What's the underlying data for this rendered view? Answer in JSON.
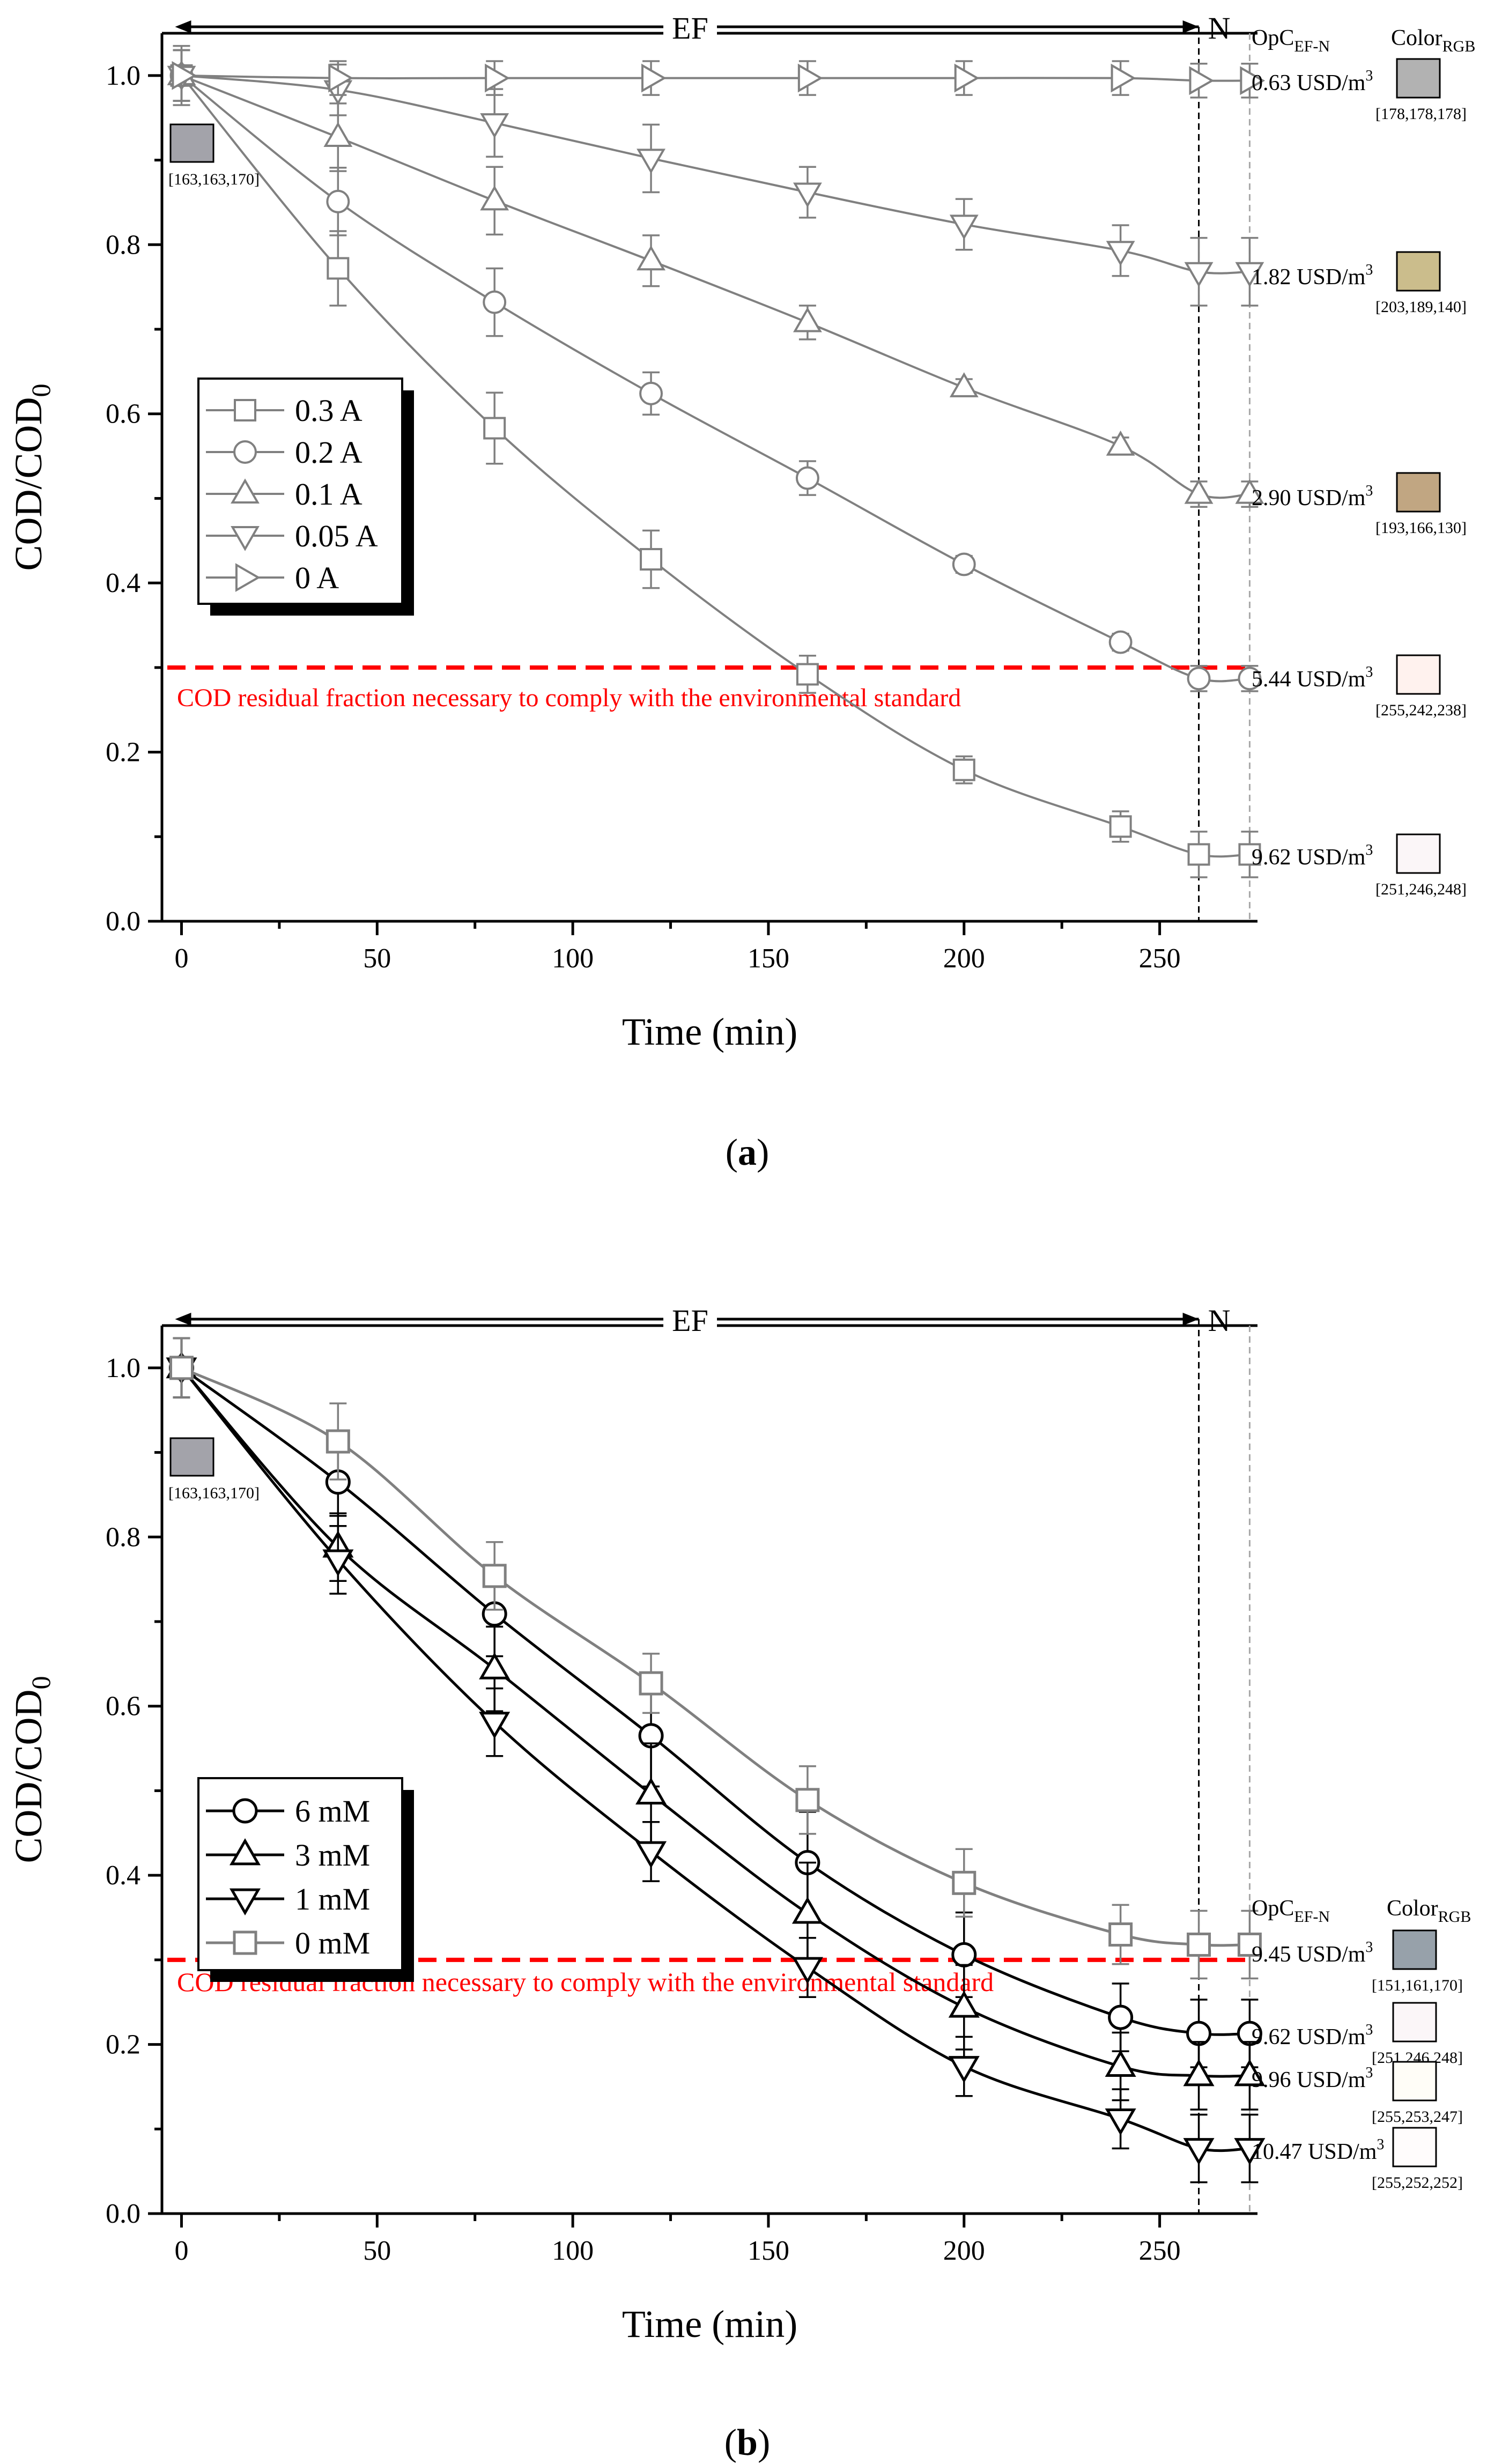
{
  "chart_data": [
    {
      "type": "line",
      "panel_label": "a",
      "xlabel": "Time (min)",
      "ylabel_main": "COD/COD",
      "ylabel_sub": "0",
      "xlim": [
        -5,
        275
      ],
      "ylim": [
        0,
        1.05
      ],
      "xticks": [
        0,
        50,
        100,
        150,
        200,
        250
      ],
      "yticks": [
        0.0,
        0.2,
        0.4,
        0.6,
        0.8,
        1.0
      ],
      "x": [
        0,
        40,
        80,
        120,
        160,
        200,
        240,
        260,
        273
      ],
      "series": [
        {
          "name": "0.3 A",
          "marker": "square",
          "color": "#808080",
          "values": [
            1.0,
            0.772,
            0.583,
            0.428,
            0.292,
            0.179,
            0.112,
            0.079,
            0.079
          ],
          "errors": [
            0.035,
            0.044,
            0.042,
            0.034,
            0.022,
            0.016,
            0.018,
            0.027,
            0.027
          ]
        },
        {
          "name": "0.2 A",
          "marker": "circle",
          "color": "#808080",
          "values": [
            1.0,
            0.851,
            0.732,
            0.624,
            0.524,
            0.422,
            0.33,
            0.287,
            0.287
          ],
          "errors": [
            0.03,
            0.04,
            0.04,
            0.025,
            0.02,
            0.01,
            0.01,
            0.015,
            0.015
          ]
        },
        {
          "name": "0.1 A",
          "marker": "triangle-up",
          "color": "#808080",
          "values": [
            1.0,
            0.927,
            0.852,
            0.781,
            0.708,
            0.631,
            0.562,
            0.505,
            0.505
          ],
          "errors": [
            0.03,
            0.04,
            0.04,
            0.03,
            0.02,
            0.01,
            0.01,
            0.015,
            0.015
          ]
        },
        {
          "name": "0.05 A",
          "marker": "triangle-down",
          "color": "#808080",
          "values": [
            1.0,
            0.983,
            0.944,
            0.902,
            0.862,
            0.824,
            0.793,
            0.768,
            0.768
          ],
          "errors": [
            0.03,
            0.03,
            0.04,
            0.04,
            0.03,
            0.03,
            0.03,
            0.04,
            0.04
          ]
        },
        {
          "name": "0 A",
          "marker": "triangle-right",
          "color": "#808080",
          "values": [
            1.0,
            0.997,
            0.997,
            0.997,
            0.997,
            0.997,
            0.997,
            0.994,
            0.994
          ],
          "errors": [
            0.03,
            0.02,
            0.02,
            0.02,
            0.02,
            0.02,
            0.02,
            0.02,
            0.02
          ]
        }
      ],
      "threshold": {
        "y": 0.3,
        "label": "COD residual fraction necessary to comply with the environmental standard",
        "color": "#ff0000"
      },
      "ef_label": "EF",
      "n_label": "N",
      "ef_end_x": 260,
      "n_end_x": 273,
      "opc_header_main": "OpC",
      "opc_header_sub": "EF-N",
      "color_header_main": "Color",
      "color_header_sub": "RGB",
      "initial_swatch": {
        "color": "#a3a3aa",
        "label": "[163,163,170]"
      },
      "costs": [
        {
          "series": "0 A",
          "value": "0.63 USD/m",
          "sup": "3",
          "label": "[178,178,178]",
          "color": "#b2b2b2"
        },
        {
          "series": "0.05 A",
          "value": "1.82 USD/m",
          "sup": "3",
          "label": "[203,189,140]",
          "color": "#cbbd8c"
        },
        {
          "series": "0.1 A",
          "value": "2.90 USD/m",
          "sup": "3",
          "label": "[193,166,130]",
          "color": "#c1a682"
        },
        {
          "series": "0.2 A",
          "value": "5.44 USD/m",
          "sup": "3",
          "label": "[255,242,238]",
          "color": "#fff2ee"
        },
        {
          "series": "0.3 A",
          "value": "9.62 USD/m",
          "sup": "3",
          "label": "[251,246,248]",
          "color": "#fbf6f8"
        }
      ]
    },
    {
      "type": "line",
      "panel_label": "b",
      "xlabel": "Time (min)",
      "ylabel_main": "COD/COD",
      "ylabel_sub": "0",
      "xlim": [
        -5,
        275
      ],
      "ylim": [
        0,
        1.05
      ],
      "xticks": [
        0,
        50,
        100,
        150,
        200,
        250
      ],
      "yticks": [
        0.0,
        0.2,
        0.4,
        0.6,
        0.8,
        1.0
      ],
      "x": [
        0,
        40,
        80,
        120,
        160,
        200,
        240,
        260,
        273
      ],
      "series": [
        {
          "name": "6 mM",
          "marker": "circle",
          "color": "#000000",
          "values": [
            1.0,
            0.865,
            0.709,
            0.565,
            0.415,
            0.306,
            0.232,
            0.213,
            0.213
          ],
          "errors": [
            0.035,
            0.04,
            0.05,
            0.06,
            0.06,
            0.05,
            0.04,
            0.04,
            0.04
          ]
        },
        {
          "name": "3 mM",
          "marker": "triangle-up",
          "color": "#000000",
          "values": [
            1.0,
            0.788,
            0.644,
            0.496,
            0.355,
            0.244,
            0.174,
            0.163,
            0.163
          ],
          "errors": [
            0.035,
            0.04,
            0.05,
            0.06,
            0.06,
            0.05,
            0.04,
            0.04,
            0.04
          ]
        },
        {
          "name": "1 mM",
          "marker": "triangle-down",
          "color": "#000000",
          "values": [
            1.0,
            0.773,
            0.581,
            0.428,
            0.291,
            0.174,
            0.112,
            0.077,
            0.077
          ],
          "errors": [
            0.035,
            0.04,
            0.04,
            0.035,
            0.035,
            0.035,
            0.035,
            0.04,
            0.04
          ]
        },
        {
          "name": "0 mM",
          "marker": "square",
          "color": "#808080",
          "values": [
            1.0,
            0.913,
            0.754,
            0.627,
            0.489,
            0.391,
            0.33,
            0.318,
            0.318
          ],
          "errors": [
            0.035,
            0.045,
            0.04,
            0.035,
            0.04,
            0.04,
            0.035,
            0.04,
            0.04
          ]
        }
      ],
      "threshold": {
        "y": 0.3,
        "label": "COD residual fraction necessary to comply with the environmental standard",
        "color": "#ff0000"
      },
      "ef_label": "EF",
      "n_label": "N",
      "ef_end_x": 260,
      "n_end_x": 273,
      "opc_header_main": "OpC",
      "opc_header_sub": "EF-N",
      "color_header_main": "Color",
      "color_header_sub": "RGB",
      "initial_swatch": {
        "color": "#a3a3aa",
        "label": "[163,163,170]"
      },
      "costs": [
        {
          "series": "0 mM",
          "value": "9.45 USD/m",
          "sup": "3",
          "label": "[151,161,170]",
          "color": "#97a1aa"
        },
        {
          "series": "6 mM",
          "value": "9.62 USD/m",
          "sup": "3",
          "label": "[251,246,248]",
          "color": "#fbf6f8"
        },
        {
          "series": "3 mM",
          "value": "9.96 USD/m",
          "sup": "3",
          "label": "[255,253,247]",
          "color": "#fffdf7"
        },
        {
          "series": "1 mM",
          "value": "10.47 USD/m",
          "sup": "3",
          "label": "[255,252,252]",
          "color": "#fffcfc"
        }
      ]
    }
  ]
}
